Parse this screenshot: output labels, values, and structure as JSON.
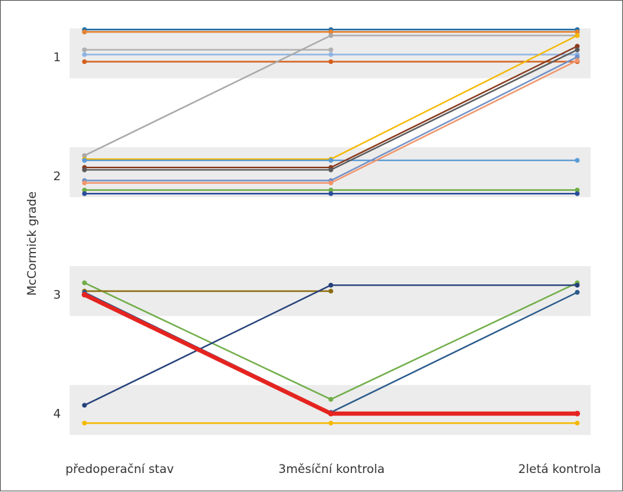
{
  "chart_data": {
    "type": "line",
    "ylabel": "McCormick grade",
    "categories": [
      "předoperační stav",
      "3měsíční kontrola",
      "2letá kontrola"
    ],
    "y_ticks": [
      1,
      2,
      3,
      4
    ],
    "ylim": [
      0.77,
      4.18
    ],
    "y_inverted": true,
    "grid_bands": true,
    "series": [
      {
        "color": "#1f6fa8",
        "values": [
          0.77,
          0.77,
          0.77
        ]
      },
      {
        "color": "#5a5a5a",
        "values": [
          0.79,
          0.79,
          0.79
        ]
      },
      {
        "color": "#e8822e",
        "values": [
          0.79,
          0.79,
          0.79
        ]
      },
      {
        "color": "#b0b0b0",
        "values": [
          0.94,
          0.94,
          null
        ]
      },
      {
        "color": "#8fb4e3",
        "values": [
          0.98,
          0.98,
          0.98
        ]
      },
      {
        "color": "#d4601e",
        "values": [
          1.04,
          1.04,
          1.04
        ]
      },
      {
        "color": "#a8a8a8",
        "values": [
          1.83,
          0.82,
          0.82
        ]
      },
      {
        "color": "#f5b800",
        "values": [
          1.86,
          1.86,
          0.82
        ]
      },
      {
        "color": "#5b9bd5",
        "values": [
          1.87,
          1.87,
          1.87
        ]
      },
      {
        "color": "#8b3a1e",
        "values": [
          1.93,
          1.93,
          0.91
        ]
      },
      {
        "color": "#5a5a5a",
        "values": [
          1.95,
          1.95,
          0.94
        ]
      },
      {
        "color": "#6f8fc7",
        "values": [
          2.04,
          2.04,
          1.0
        ]
      },
      {
        "color": "#f2956b",
        "values": [
          2.06,
          2.06,
          1.03
        ]
      },
      {
        "color": "#70ad47",
        "values": [
          2.12,
          2.12,
          2.12
        ]
      },
      {
        "color": "#2a4d9b",
        "values": [
          2.15,
          2.15,
          2.15
        ]
      },
      {
        "color": "#70ad47",
        "values": [
          2.9,
          3.88,
          2.9
        ]
      },
      {
        "color": "#8b6d10",
        "values": [
          2.97,
          2.97,
          null
        ]
      },
      {
        "color": "#2a5a8c",
        "values": [
          2.98,
          3.99,
          2.98
        ]
      },
      {
        "color": "#e52420",
        "values": [
          3.0,
          4.0,
          4.0
        ],
        "emphasis": true
      },
      {
        "color": "#24407a",
        "values": [
          3.93,
          2.92,
          2.92
        ]
      },
      {
        "color": "#f5b800",
        "values": [
          4.08,
          4.08,
          4.08
        ]
      }
    ]
  }
}
